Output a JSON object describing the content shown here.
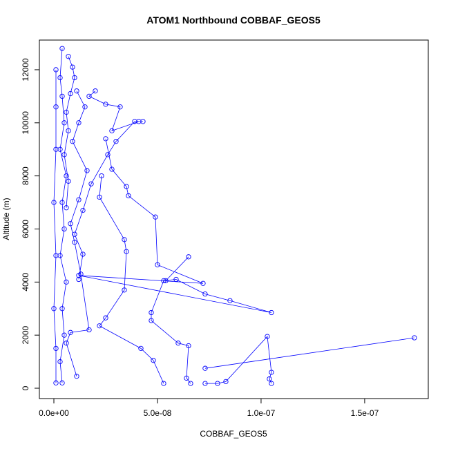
{
  "chart_data": {
    "type": "line",
    "title": "ATOM1 Northbound COBBAF_GEOS5",
    "xlabel": "COBBAF_GEOS5",
    "ylabel": "Altitude (m)",
    "color": "#0000ff",
    "xlim": [
      -7e-09,
      1.807e-07
    ],
    "ylim": [
      -390,
      13118
    ],
    "xticks": [
      {
        "value": 0,
        "label": "0.0e+00"
      },
      {
        "value": 5e-08,
        "label": "5.0e-08"
      },
      {
        "value": 1e-07,
        "label": "1.0e-07"
      },
      {
        "value": 1.5e-07,
        "label": "1.5e-07"
      }
    ],
    "yticks": [
      0,
      2000,
      4000,
      6000,
      8000,
      10000,
      12000
    ],
    "x": [
      4e-09,
      3e-09,
      5e-09,
      4e-09,
      6e-09,
      3e-09,
      5e-09,
      4e-09,
      6e-09,
      3e-09,
      5e-09,
      4e-09,
      3e-09,
      4e-09,
      null,
      1e-09,
      1e-09,
      0,
      1e-09,
      0,
      1e-09,
      1e-09,
      1e-09,
      null,
      5.3e-08,
      4.8e-08,
      4.2e-08,
      2.2e-08,
      2.5e-08,
      3.4e-08,
      3.5e-08,
      3.4e-08,
      2.2e-08,
      2.3e-08,
      null,
      1.05e-07,
      1.04e-07,
      1.05e-07,
      1.03e-07,
      8.3e-08,
      7.9e-08,
      7.3e-08,
      null,
      6.6e-08,
      6.4e-08,
      6.5e-08,
      6e-08,
      4.7e-08,
      4.7e-08,
      5.3e-08,
      5.9e-08,
      7.3e-08,
      8.5e-08,
      1.05e-07,
      1.2e-08,
      7.2e-08,
      5e-08,
      4.9e-08,
      3.6e-08,
      3.5e-08,
      2.8e-08,
      2.5e-08,
      null,
      1.74e-07,
      7.3e-08,
      null,
      6.5e-08,
      5.4e-08,
      null,
      2e-08,
      1.7e-08,
      2.5e-08,
      3.2e-08,
      2.8e-08,
      4.1e-08,
      4.3e-08,
      3.9e-08,
      3e-08,
      2.6e-08,
      1.8e-08,
      1.4e-08,
      1e-08,
      1.4e-08,
      1.2e-08,
      null,
      1.1e-08,
      1.5e-08,
      1.2e-08,
      9e-09,
      1.6e-08,
      1.2e-08,
      8e-09,
      1e-08,
      1.3e-08,
      1.7e-08,
      8e-09,
      6e-09,
      1.1e-08,
      null,
      7e-09,
      9e-09,
      1e-08,
      8e-09,
      6e-09,
      7e-09,
      5e-09,
      7e-09,
      6e-09
    ],
    "y": [
      200,
      1000,
      2000,
      3000,
      4000,
      5000,
      6000,
      7000,
      8000,
      9000,
      10000,
      11000,
      11700,
      12800,
      null,
      200,
      1500,
      3000,
      5000,
      7000,
      9000,
      10600,
      12000,
      null,
      180,
      1050,
      1500,
      2350,
      2650,
      3700,
      5150,
      5600,
      7200,
      8000,
      null,
      180,
      350,
      600,
      1950,
      250,
      180,
      180,
      null,
      180,
      380,
      1600,
      1700,
      2550,
      2850,
      4050,
      4100,
      3550,
      3300,
      2850,
      4250,
      3950,
      4650,
      6450,
      7250,
      7600,
      8250,
      9400,
      null,
      1900,
      750,
      null,
      4950,
      4050,
      null,
      11200,
      11000,
      10700,
      10600,
      9700,
      10050,
      10050,
      10050,
      9300,
      8800,
      7700,
      6700,
      5800,
      5050,
      4100,
      null,
      11200,
      10600,
      10000,
      9300,
      8200,
      7100,
      6200,
      5500,
      4300,
      2200,
      2100,
      1700,
      450,
      null,
      12500,
      12100,
      11700,
      11100,
      10400,
      9700,
      8800,
      7800,
      6800
    ]
  }
}
